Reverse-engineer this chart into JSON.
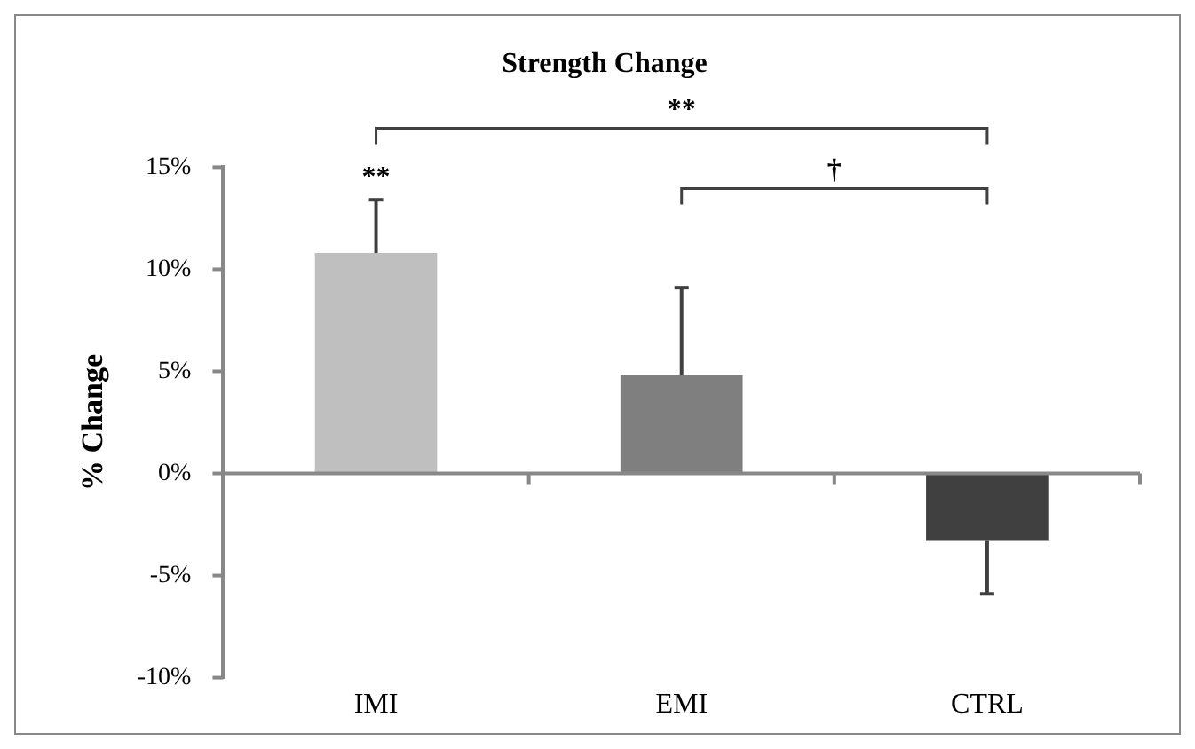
{
  "chart_data": {
    "type": "bar",
    "title": "Strength Change",
    "ylabel": "% Change",
    "categories": [
      "IMI",
      "EMI",
      "CTRL"
    ],
    "values": [
      10.8,
      4.8,
      -3.3
    ],
    "colors": [
      "#bfbfbf",
      "#7f7f7f",
      "#404040"
    ],
    "errors": [
      [
        10.8,
        13.4
      ],
      [
        4.8,
        9.1
      ],
      [
        -5.9,
        -3.3
      ]
    ],
    "ylim": [
      -10,
      15
    ],
    "yticks": [
      {
        "value": -10,
        "label": "-10%"
      },
      {
        "value": -5,
        "label": "-5%"
      },
      {
        "value": 0,
        "label": "0%"
      },
      {
        "value": 5,
        "label": "5%"
      },
      {
        "value": 10,
        "label": "10%"
      },
      {
        "value": 15,
        "label": "15%"
      }
    ],
    "annotations": [
      {
        "text": "**",
        "x": "IMI",
        "y": 13.4
      },
      "**",
      "†"
    ],
    "legend": false
  }
}
